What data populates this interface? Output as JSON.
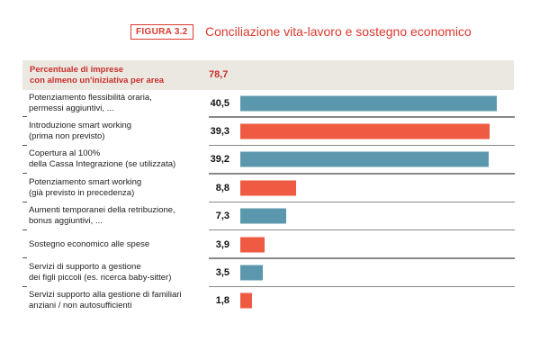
{
  "figure_label": "FIGURA 3.2",
  "chart_data": {
    "type": "bar",
    "orientation": "horizontal",
    "title": "Conciliazione vita-lavoro e sostegno economico",
    "header": {
      "label_line1": "Percentuale di imprese",
      "label_line2": "con almeno un'iniziativa per area",
      "value": "78,7"
    },
    "categories": [
      [
        "Potenziamento flessibilità oraria,",
        "permessi aggiuntivi, ..."
      ],
      [
        "Introduzione smart working",
        "(prima non previsto)"
      ],
      [
        "Copertura al 100%",
        "della Cassa Integrazione (se utilizzata)"
      ],
      [
        "Potenziamento smart working",
        "(già previsto in precedenza)"
      ],
      [
        "Aumenti temporanei della retribuzione,",
        "bonus aggiuntivi, ..."
      ],
      [
        "Sostegno economico alle spese",
        ""
      ],
      [
        "Servizi di supporto a gestione",
        "dei figli piccoli (es. ricerca baby-sitter)"
      ],
      [
        "Servizi supporto alla gestione di familiari",
        "anziani / non autosufficienti"
      ]
    ],
    "values": [
      40.5,
      39.3,
      39.2,
      8.8,
      7.3,
      3.9,
      3.5,
      1.8
    ],
    "value_labels": [
      "40,5",
      "39,3",
      "39,2",
      "8,8",
      "7,3",
      "3,9",
      "3,5",
      "1,8"
    ],
    "colors": [
      "#5b98ad",
      "#ee5a42",
      "#5b98ad",
      "#ee5a42",
      "#5b98ad",
      "#ee5a42",
      "#5b98ad",
      "#ee5a42"
    ],
    "grid": false,
    "legend": "none"
  }
}
